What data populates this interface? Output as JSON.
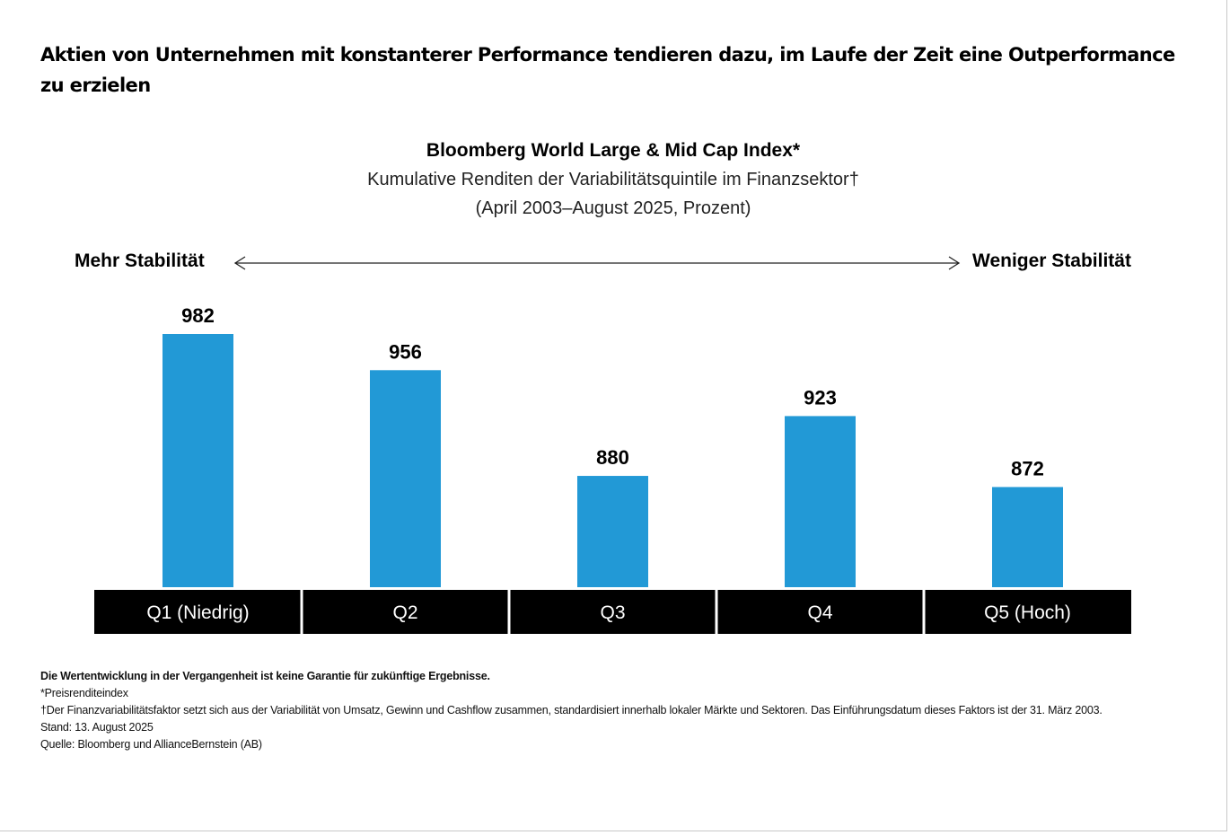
{
  "headline": "Aktien von Unternehmen mit konstanterer Performance tendieren dazu, im Laufe der Zeit eine Outperformance zu erzielen",
  "stability": {
    "left": "Mehr Stabilität",
    "right": "Weniger Stabilität",
    "arrow_icon": "double-headed-arrow"
  },
  "colors": {
    "bar": "#2299d6",
    "label_band": "#000000"
  },
  "chart_data": {
    "type": "bar",
    "title": "Bloomberg World Large & Mid Cap Index*",
    "subtitle": [
      "Kumulative Renditen der Variabilitätsquintile im Finanzsektor†",
      "(April 2003–August 2025, Prozent)"
    ],
    "categories": [
      "Q1 (Niedrig)",
      "Q2",
      "Q3",
      "Q4",
      "Q5 (Hoch)"
    ],
    "values": [
      982,
      956,
      880,
      923,
      872
    ],
    "xlabel": "",
    "ylabel": "",
    "ylim": [
      800,
      982
    ],
    "grid": false,
    "legend": "none",
    "data_labels": [
      "982",
      "956",
      "880",
      "923",
      "872"
    ]
  },
  "notes": [
    "Die Wertentwicklung in der Vergangenheit ist keine Garantie für zukünftige Ergebnisse.",
    "*Preisrenditeindex",
    "†Der Finanzvariabilitätsfaktor setzt sich aus der Variabilität von Umsatz, Gewinn und Cashflow zusammen, standardisiert innerhalb lokaler Märkte und Sektoren. Das Einführungsdatum dieses Faktors ist der 31. März 2003.",
    "Stand: 13. August 2025",
    "Quelle: Bloomberg und AllianceBernstein (AB)"
  ]
}
